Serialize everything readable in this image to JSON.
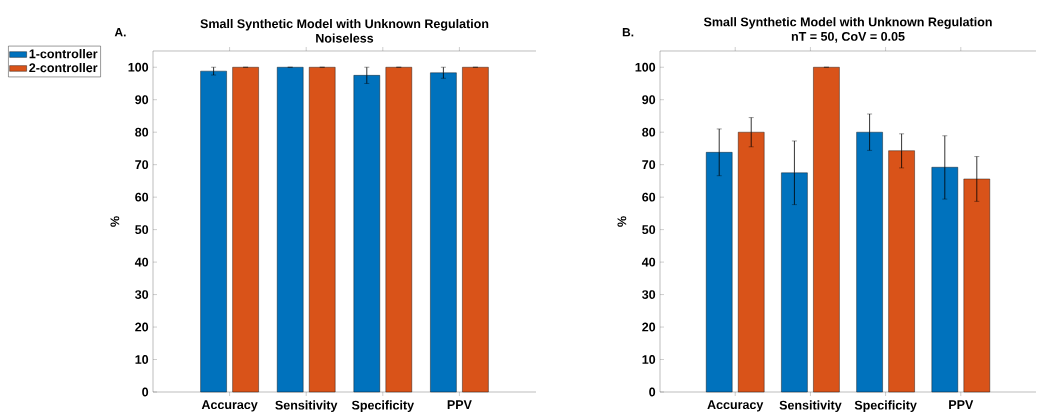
{
  "chart_data": [
    {
      "type": "bar",
      "title": "Small Synthetic Model with Unknown Regulation",
      "subtitle": "Noiseless",
      "ylabel": "%",
      "annotations": [
        "A."
      ],
      "categories": [
        "Accuracy",
        "Sensitivity",
        "Specificity",
        "PPV"
      ],
      "series": [
        {
          "name": "1-controller",
          "color": "#0072bd",
          "values": [
            98.8,
            100,
            97.5,
            98.3
          ],
          "errors": [
            [
              97.6,
              100
            ],
            null,
            [
              95,
              100
            ],
            [
              96.6,
              100
            ]
          ]
        },
        {
          "name": "2-controller",
          "color": "#d95319",
          "values": [
            100,
            100,
            100,
            100
          ],
          "errors": [
            null,
            null,
            null,
            null
          ]
        }
      ],
      "ylim": [
        0,
        105
      ],
      "yticks": [
        0,
        10,
        20,
        30,
        40,
        50,
        60,
        70,
        80,
        90,
        100
      ],
      "grid": false,
      "legend": "top left"
    },
    {
      "type": "bar",
      "title": "Small Synthetic Model with Unknown Regulation",
      "subtitle": "nT = 50, CoV = 0.05",
      "ylabel": "%",
      "annotations": [
        "B."
      ],
      "categories": [
        "Accuracy",
        "Sensitivity",
        "Specificity",
        "PPV"
      ],
      "series": [
        {
          "color": "#0072bd",
          "values": [
            73.8,
            67.5,
            80,
            69.2
          ],
          "errors": [
            [
              66.6,
              81
            ],
            [
              57.7,
              77.3
            ],
            [
              74.4,
              85.6
            ],
            [
              59.4,
              78.9
            ]
          ]
        },
        {
          "color": "#d95319",
          "values": [
            80,
            100,
            74.3,
            65.6
          ],
          "errors": [
            [
              75.5,
              84.5
            ],
            null,
            [
              69,
              79.5
            ],
            [
              58.7,
              72.5
            ]
          ]
        }
      ],
      "ylim": [
        0,
        105
      ],
      "yticks": [
        0,
        10,
        20,
        30,
        40,
        50,
        60,
        70,
        80,
        90,
        100
      ],
      "grid": false,
      "legend": false
    }
  ]
}
